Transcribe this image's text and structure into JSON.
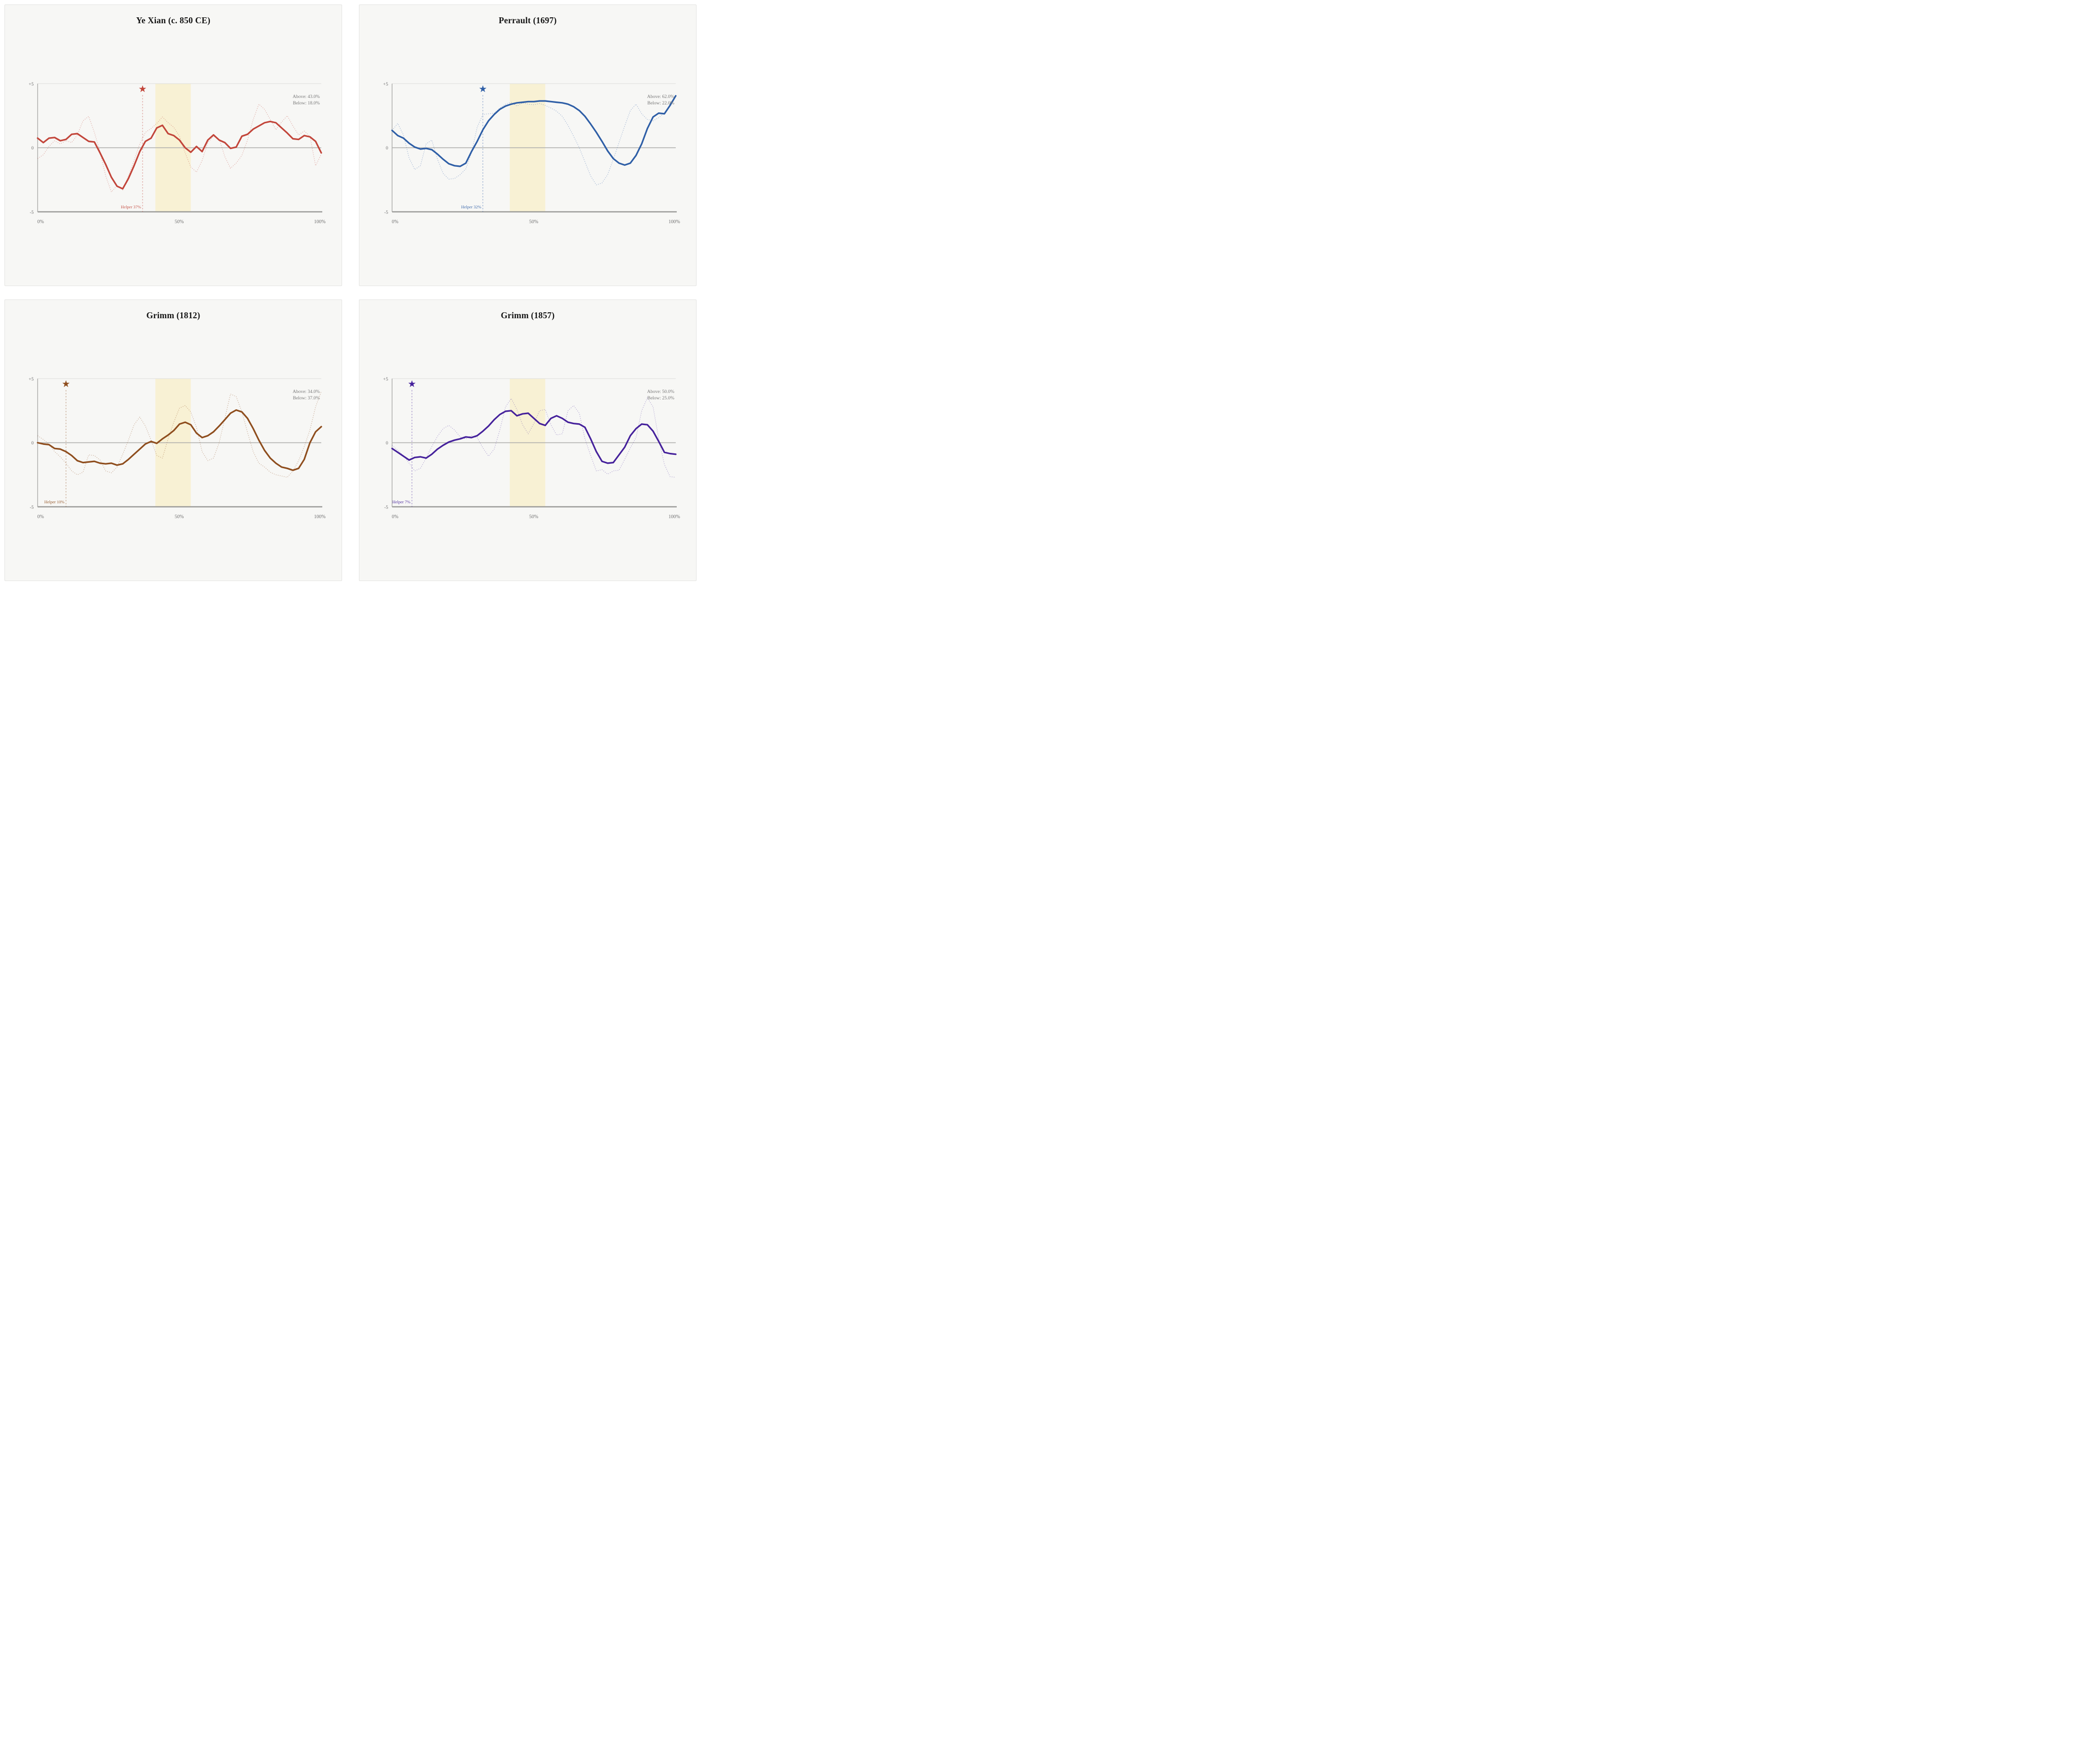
{
  "page": {
    "background": "#ffffff",
    "panel_background": "#f7f7f5",
    "panel_border": "#e4e4e2"
  },
  "axis": {
    "y_ticks": [
      "+5",
      "0",
      "-5"
    ],
    "x_ticks": [
      "0%",
      "50%",
      "100%"
    ],
    "ylim": [
      -5,
      5
    ],
    "xlim_percent": [
      0,
      100
    ],
    "zero_line_color": "#ababa9",
    "top_line_color": "#dcdcda",
    "axis_color": "#9b9b99"
  },
  "band": {
    "x_start_percent": 41.5,
    "x_end_percent": 54.0,
    "color": "#f8f1d4"
  },
  "star_icon": "★",
  "chart_data": [
    {
      "type": "line",
      "title": "Ye Xian (c. 850 CE)",
      "line_color": "#c2453a",
      "raw_opacity": 0.42,
      "helper": {
        "label": "Helper 37%",
        "x_percent": 37
      },
      "above_label": "Above: 43.0%",
      "below_label": "Below: 18.0%",
      "ylim": [
        -5,
        5
      ],
      "x_percent_step": 2,
      "series": [
        {
          "name": "smoothed",
          "style": "solid",
          "values": [
            0.75,
            0.4,
            0.75,
            0.8,
            0.55,
            0.65,
            1.05,
            1.1,
            0.8,
            0.5,
            0.45,
            -0.4,
            -1.3,
            -2.3,
            -3.0,
            -3.2,
            -2.4,
            -1.4,
            -0.3,
            0.5,
            0.75,
            1.55,
            1.75,
            1.1,
            0.95,
            0.6,
            0.0,
            -0.35,
            0.1,
            -0.3,
            0.6,
            1.0,
            0.6,
            0.4,
            -0.05,
            0.05,
            0.9,
            1.05,
            1.45,
            1.7,
            1.95,
            2.05,
            1.95,
            1.55,
            1.15,
            0.7,
            0.65,
            0.95,
            0.85,
            0.5,
            -0.4
          ]
        },
        {
          "name": "raw",
          "style": "dotted",
          "values": [
            -0.85,
            -0.55,
            0.1,
            0.55,
            0.3,
            0.55,
            0.4,
            1.0,
            2.1,
            2.45,
            1.2,
            -0.3,
            -2.2,
            -3.45,
            -2.95,
            -3.3,
            -2.2,
            -1.0,
            0.3,
            1.2,
            1.5,
            1.9,
            2.4,
            1.95,
            1.6,
            0.9,
            -0.4,
            -1.5,
            -1.9,
            -1.0,
            0.4,
            0.9,
            0.7,
            -0.7,
            -1.6,
            -1.2,
            -0.6,
            0.6,
            2.2,
            3.4,
            3.0,
            2.2,
            1.4,
            2.0,
            2.5,
            1.7,
            1.0,
            1.3,
            0.9,
            -1.4,
            -0.5
          ]
        }
      ]
    },
    {
      "type": "line",
      "title": "Perrault (1697)",
      "line_color": "#2e5ea6",
      "raw_opacity": 0.42,
      "helper": {
        "label": "Helper 32%",
        "x_percent": 32
      },
      "above_label": "Above: 62.0%",
      "below_label": "Below: 22.0%",
      "ylim": [
        -5,
        5
      ],
      "x_percent_step": 2,
      "series": [
        {
          "name": "smoothed",
          "style": "solid",
          "values": [
            1.35,
            0.95,
            0.75,
            0.35,
            0.05,
            -0.1,
            -0.05,
            -0.15,
            -0.5,
            -0.9,
            -1.25,
            -1.4,
            -1.45,
            -1.2,
            -0.3,
            0.5,
            1.4,
            2.1,
            2.6,
            3.0,
            3.25,
            3.4,
            3.5,
            3.55,
            3.6,
            3.6,
            3.65,
            3.65,
            3.6,
            3.55,
            3.5,
            3.4,
            3.2,
            2.9,
            2.45,
            1.85,
            1.2,
            0.5,
            -0.25,
            -0.85,
            -1.2,
            -1.35,
            -1.2,
            -0.6,
            0.3,
            1.5,
            2.4,
            2.7,
            2.65,
            3.3,
            4.05
          ]
        },
        {
          "name": "raw",
          "style": "dotted",
          "values": [
            1.35,
            1.9,
            1.0,
            -0.8,
            -1.7,
            -1.4,
            0.3,
            0.6,
            -0.9,
            -2.0,
            -2.45,
            -2.4,
            -2.1,
            -1.65,
            -0.4,
            1.6,
            2.6,
            2.65,
            2.7,
            3.1,
            3.4,
            3.55,
            3.25,
            3.5,
            3.4,
            3.35,
            3.45,
            3.3,
            3.1,
            2.85,
            2.45,
            1.75,
            0.9,
            0.0,
            -1.1,
            -2.2,
            -2.9,
            -2.75,
            -2.1,
            -0.9,
            0.4,
            1.7,
            2.9,
            3.4,
            2.65,
            2.2,
            2.1,
            2.35,
            2.7,
            3.3,
            4.1
          ]
        }
      ]
    },
    {
      "type": "line",
      "title": "Grimm (1812)",
      "line_color": "#8e4d1d",
      "raw_opacity": 0.42,
      "helper": {
        "label": "Helper 10%",
        "x_percent": 10
      },
      "above_label": "Above: 34.0%",
      "below_label": "Below: 37.0%",
      "ylim": [
        -5,
        5
      ],
      "x_percent_step": 2,
      "series": [
        {
          "name": "smoothed",
          "style": "solid",
          "values": [
            0.0,
            -0.1,
            -0.15,
            -0.45,
            -0.5,
            -0.7,
            -1.0,
            -1.4,
            -1.55,
            -1.5,
            -1.45,
            -1.6,
            -1.65,
            -1.6,
            -1.75,
            -1.65,
            -1.3,
            -0.9,
            -0.5,
            -0.1,
            0.1,
            -0.05,
            0.3,
            0.6,
            0.95,
            1.45,
            1.6,
            1.4,
            0.75,
            0.4,
            0.55,
            0.85,
            1.3,
            1.8,
            2.3,
            2.55,
            2.4,
            1.9,
            1.1,
            0.2,
            -0.6,
            -1.2,
            -1.6,
            -1.9,
            -2.0,
            -2.15,
            -2.0,
            -1.3,
            0.0,
            0.85,
            1.25
          ]
        },
        {
          "name": "raw",
          "style": "dotted",
          "values": [
            0.55,
            0.25,
            -0.1,
            -0.7,
            -1.1,
            -1.6,
            -2.2,
            -2.5,
            -2.3,
            -0.95,
            -1.0,
            -1.35,
            -2.2,
            -2.35,
            -1.9,
            -0.9,
            0.2,
            1.4,
            2.0,
            1.3,
            0.2,
            -1.0,
            -1.2,
            0.3,
            1.6,
            2.7,
            2.9,
            2.4,
            1.2,
            -0.7,
            -1.4,
            -1.2,
            0.0,
            1.9,
            3.8,
            3.6,
            2.4,
            0.8,
            -0.7,
            -1.6,
            -1.9,
            -2.3,
            -2.5,
            -2.6,
            -2.7,
            -2.2,
            -1.4,
            -0.3,
            1.0,
            2.8,
            4.0
          ]
        }
      ]
    },
    {
      "type": "line",
      "title": "Grimm (1857)",
      "line_color": "#45219b",
      "raw_opacity": 0.38,
      "helper": {
        "label": "Helper 7%",
        "x_percent": 7
      },
      "above_label": "Above: 50.0%",
      "below_label": "Below: 25.0%",
      "ylim": [
        -5,
        5
      ],
      "x_percent_step": 2,
      "series": [
        {
          "name": "smoothed",
          "style": "solid",
          "values": [
            -0.45,
            -0.75,
            -1.05,
            -1.35,
            -1.15,
            -1.1,
            -1.2,
            -0.9,
            -0.5,
            -0.2,
            0.05,
            0.2,
            0.3,
            0.45,
            0.4,
            0.55,
            0.9,
            1.3,
            1.8,
            2.2,
            2.45,
            2.5,
            2.1,
            2.25,
            2.3,
            1.9,
            1.5,
            1.35,
            1.9,
            2.1,
            1.9,
            1.6,
            1.5,
            1.45,
            1.2,
            0.3,
            -0.7,
            -1.45,
            -1.6,
            -1.55,
            -0.95,
            -0.35,
            0.55,
            1.1,
            1.45,
            1.4,
            0.9,
            0.1,
            -0.75,
            -0.85,
            -0.9
          ]
        },
        {
          "name": "raw",
          "style": "dotted",
          "values": [
            -0.2,
            -0.6,
            -1.0,
            -1.6,
            -2.2,
            -2.0,
            -1.2,
            -0.3,
            0.5,
            1.1,
            1.35,
            1.0,
            0.45,
            0.3,
            0.55,
            0.4,
            -0.4,
            -1.05,
            -0.5,
            1.0,
            2.8,
            3.45,
            2.6,
            1.4,
            0.7,
            1.5,
            2.5,
            2.6,
            1.4,
            0.6,
            0.7,
            2.5,
            2.9,
            2.3,
            0.3,
            -1.0,
            -2.2,
            -2.1,
            -2.45,
            -2.2,
            -2.15,
            -1.3,
            -0.4,
            0.4,
            2.5,
            3.5,
            2.8,
            0.3,
            -1.7,
            -2.65,
            -2.7
          ]
        }
      ]
    }
  ]
}
